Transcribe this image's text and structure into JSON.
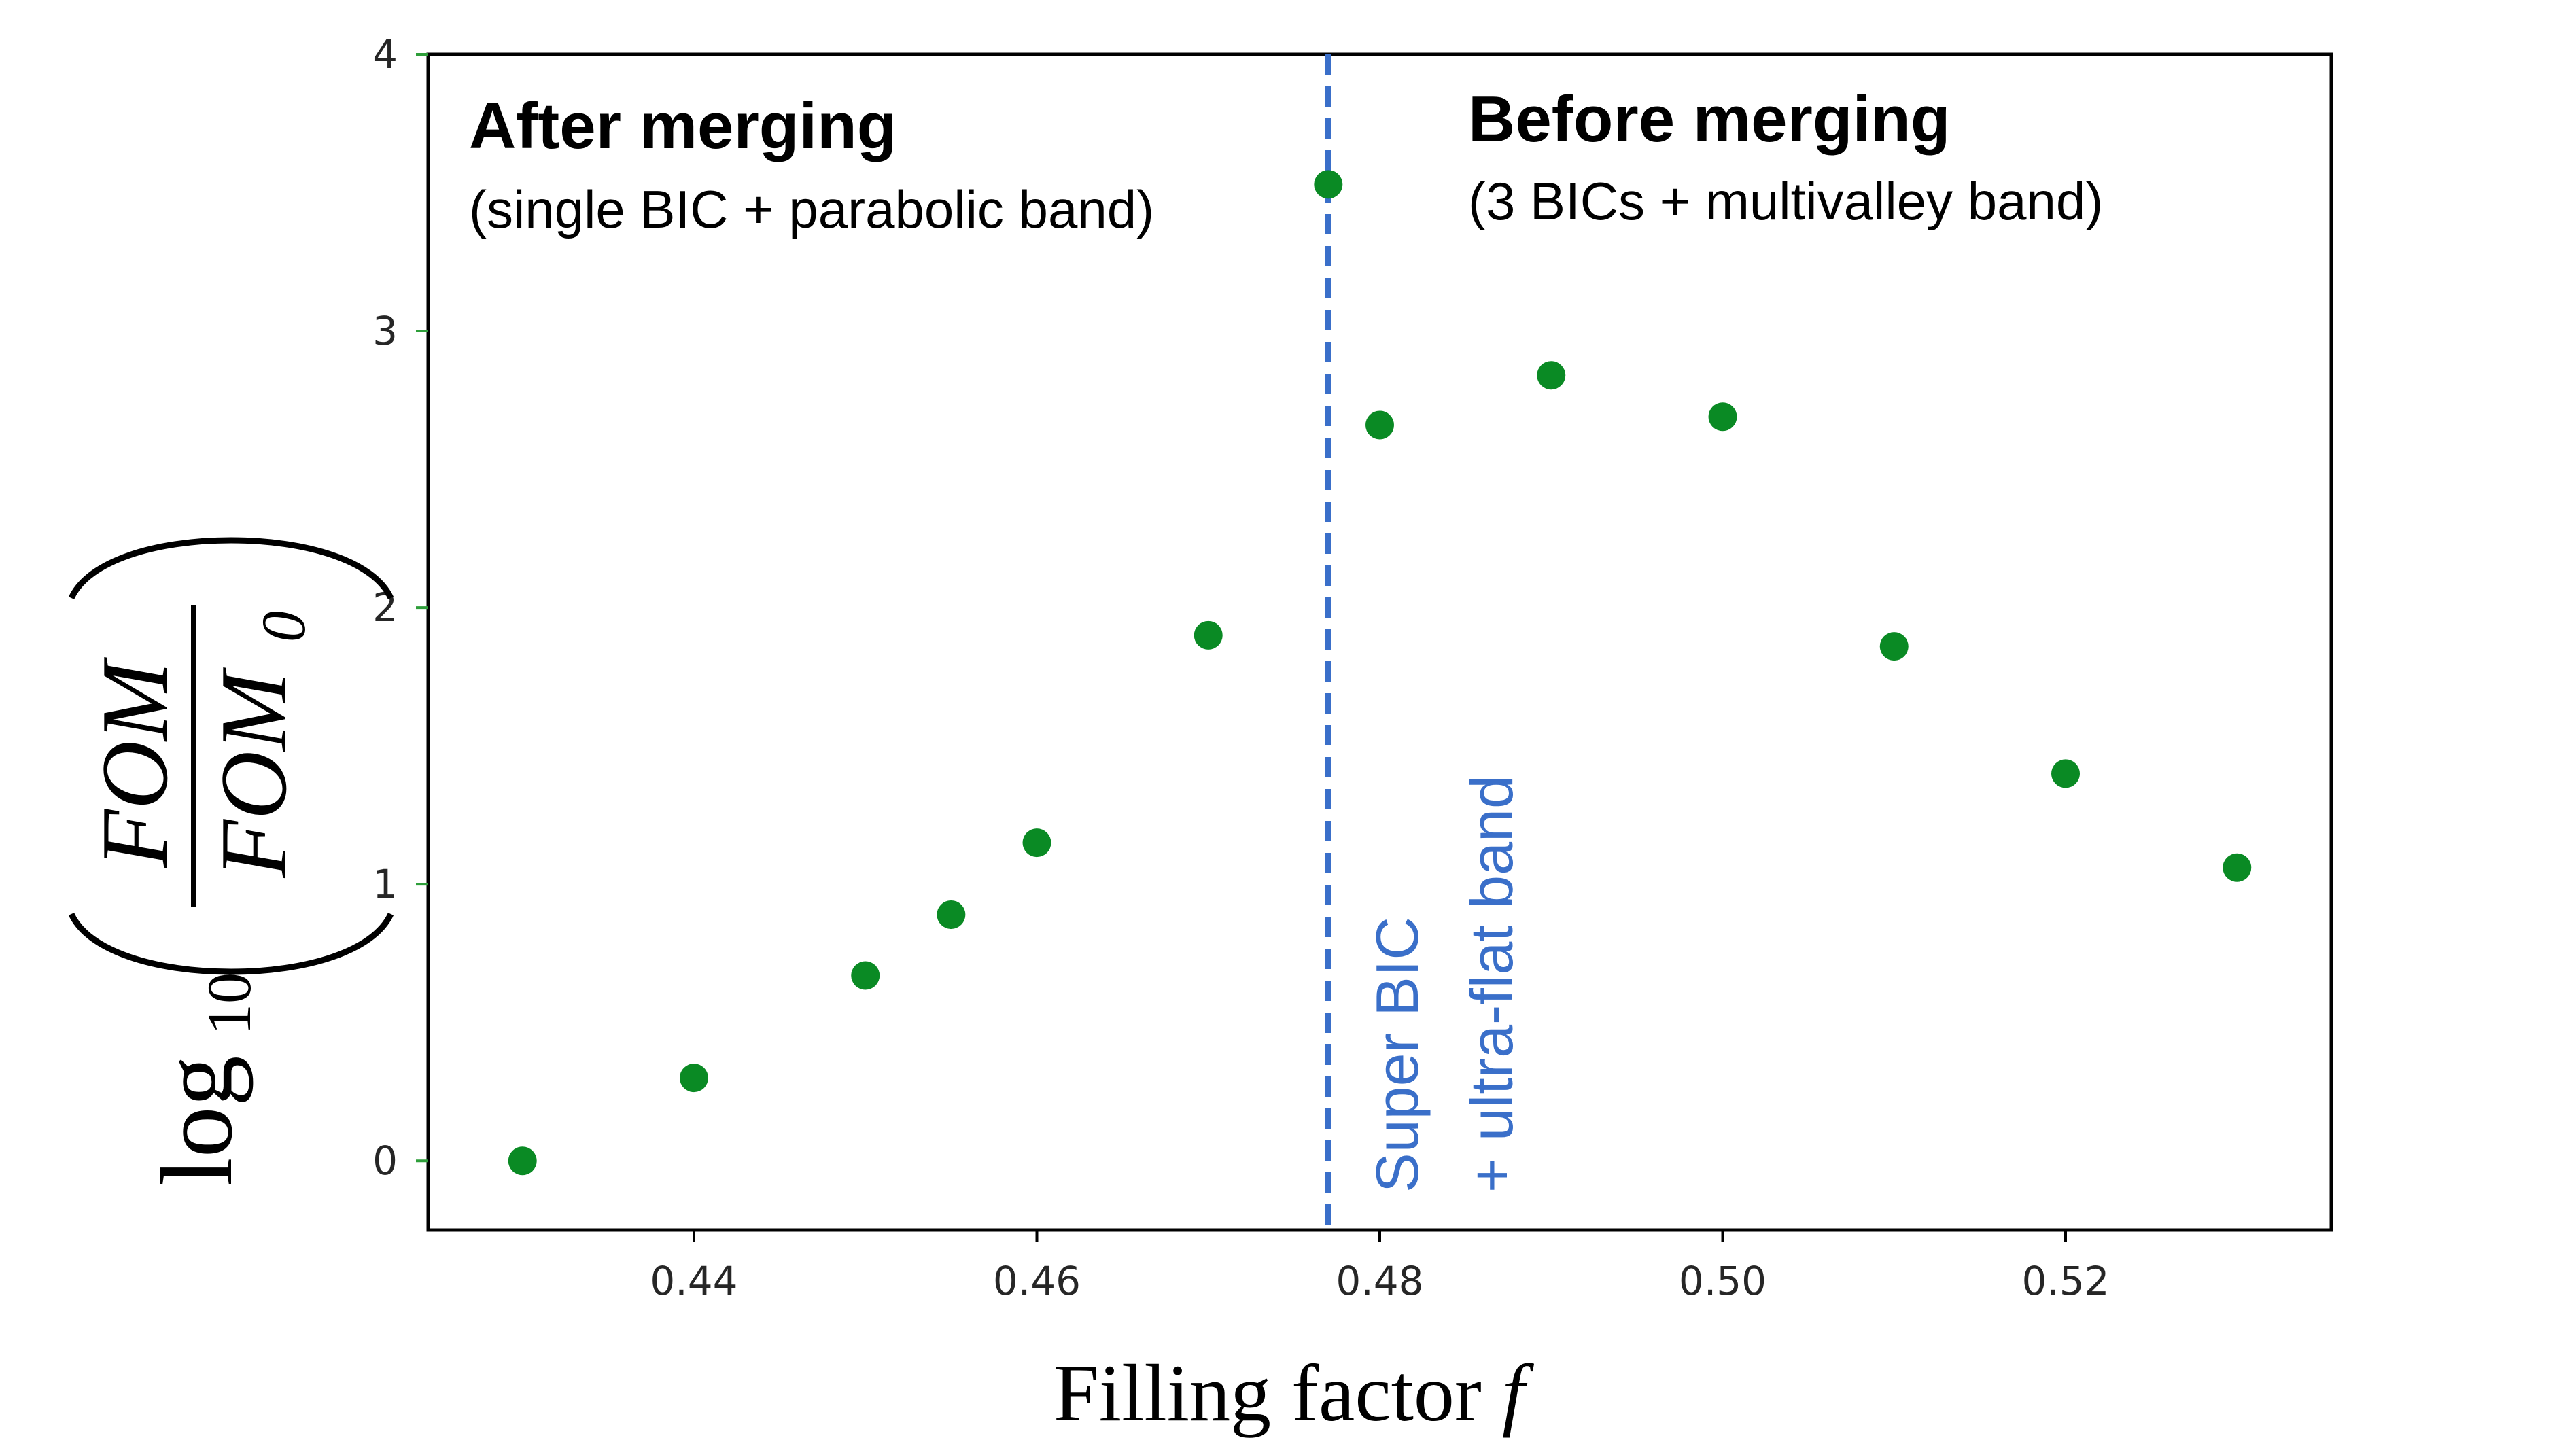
{
  "colors": {
    "marker": "#0a8a24",
    "vline": "#3a6fc9",
    "axis": "#000000",
    "tick": "#2e9e3a"
  },
  "chart_data": {
    "type": "scatter",
    "title": "",
    "xlabel": "Filling factor",
    "xlabel_symbol": "f",
    "ylabel": {
      "prefix": "log",
      "subscript": "10",
      "numerator": "FOM",
      "denominator": "FOM",
      "denominator_subscript": "0"
    },
    "xlim": [
      0.4245,
      0.5355
    ],
    "ylim": [
      -0.25,
      4.0
    ],
    "xticks": [
      0.44,
      0.46,
      0.48,
      0.5,
      0.52
    ],
    "xtick_labels": [
      "0.44",
      "0.46",
      "0.48",
      "0.50",
      "0.52"
    ],
    "yticks": [
      0,
      1,
      2,
      3,
      4
    ],
    "ytick_labels": [
      "0",
      "1",
      "2",
      "3",
      "4"
    ],
    "grid": false,
    "series": [
      {
        "name": "FOM",
        "x": [
          0.43,
          0.44,
          0.45,
          0.455,
          0.46,
          0.47,
          0.477,
          0.48,
          0.49,
          0.5,
          0.51,
          0.52,
          0.53
        ],
        "y": [
          0.0,
          0.3,
          0.67,
          0.89,
          1.15,
          1.9,
          3.53,
          2.66,
          2.84,
          2.69,
          1.86,
          1.4,
          1.06
        ]
      }
    ],
    "vline": {
      "x": 0.477,
      "style": "dashed"
    },
    "annotations": {
      "left_title": "After merging",
      "left_subtitle": "(single BIC + parabolic band)",
      "right_title": "Before merging",
      "right_subtitle": "(3 BICs + multivalley band)",
      "vline_label_line1": "Super BIC",
      "vline_label_line2": "+ ultra-flat band"
    }
  }
}
